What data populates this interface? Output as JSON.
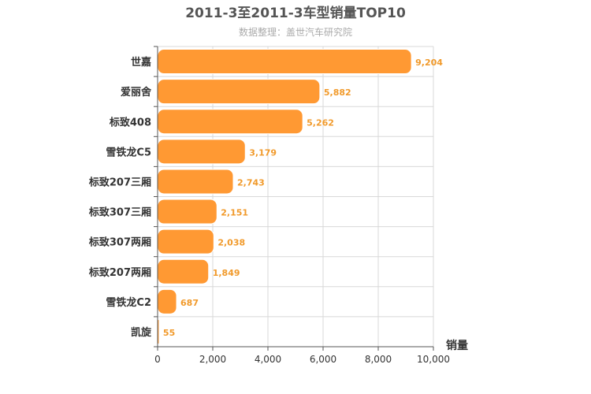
{
  "chart_data": {
    "type": "bar",
    "orientation": "horizontal",
    "title": "2011-3至2011-3车型销量TOP10",
    "subtitle": "数据整理：盖世汽车研究院",
    "categories": [
      "世嘉",
      "爱丽舍",
      "标致408",
      "雪铁龙C5",
      "标致207三厢",
      "标致307三厢",
      "标致307两厢",
      "标致207两厢",
      "雪铁龙C2",
      "凯旋"
    ],
    "values": [
      9204,
      5882,
      5262,
      3179,
      2743,
      2151,
      2038,
      1849,
      687,
      55
    ],
    "value_labels": [
      "9,204",
      "5,882",
      "5,262",
      "3,179",
      "2,743",
      "2,151",
      "2,038",
      "1,849",
      "687",
      "55"
    ],
    "xlabel": "销量",
    "ylabel": "",
    "xlim": [
      0,
      10000
    ],
    "xticks": [
      0,
      2000,
      4000,
      6000,
      8000,
      10000
    ],
    "xtick_labels": [
      "0",
      "2,000",
      "4,000",
      "6,000",
      "8,000",
      "10,000"
    ],
    "grid": true,
    "colors": {
      "bar": "#ff9933",
      "bar_stroke": "#ffffff",
      "value_label": "#f19a2b",
      "grid": "#d8d8d8",
      "axis": "#555555",
      "title": "#555555",
      "subtitle": "#aaaaaa"
    }
  }
}
